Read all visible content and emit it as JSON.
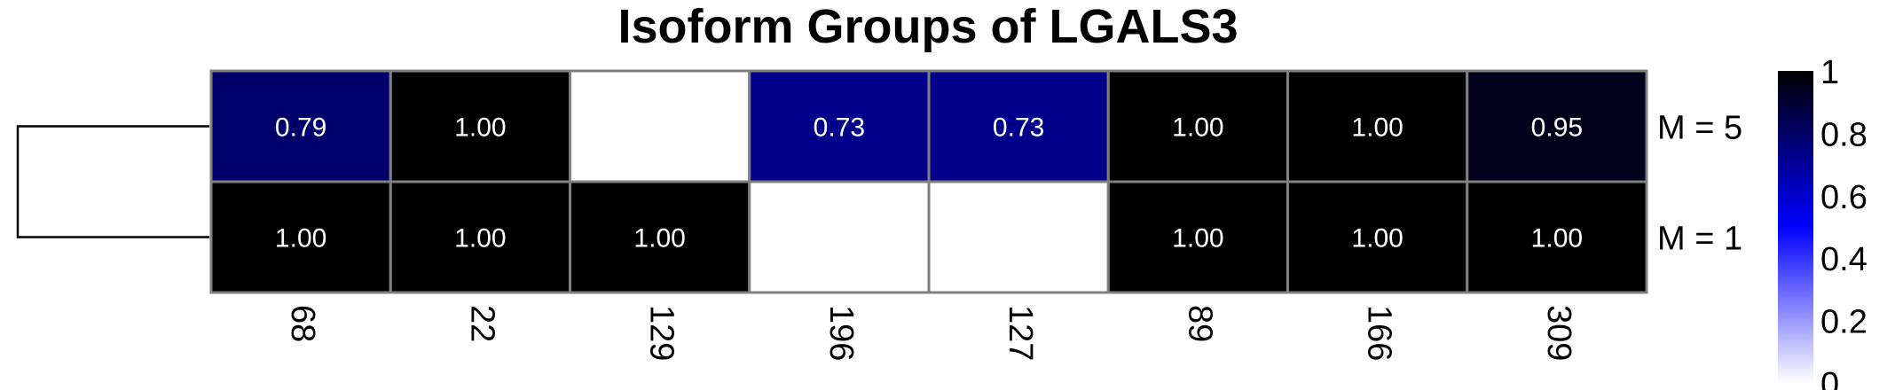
{
  "chart_data": {
    "type": "heatmap",
    "title": "Isoform Groups of LGALS3",
    "columns": [
      "68",
      "22",
      "129",
      "196",
      "127",
      "89",
      "166",
      "309"
    ],
    "rows": [
      "M = 5",
      "M = 1"
    ],
    "values": [
      [
        0.79,
        1.0,
        null,
        0.73,
        0.73,
        1.0,
        1.0,
        0.95
      ],
      [
        1.0,
        1.0,
        1.0,
        null,
        null,
        1.0,
        1.0,
        1.0
      ]
    ],
    "cell_labels": [
      [
        "0.79",
        "1.00",
        "",
        "0.73",
        "0.73",
        "1.00",
        "1.00",
        "0.95"
      ],
      [
        "1.00",
        "1.00",
        "1.00",
        "",
        "",
        "1.00",
        "1.00",
        "1.00"
      ]
    ],
    "color_scale": {
      "min": 0,
      "max": 1,
      "stops": [
        "#ffffff",
        "#0000ff",
        "#000000"
      ],
      "ticks": [
        "0",
        "0.2",
        "0.4",
        "0.6",
        "0.8",
        "1"
      ]
    },
    "dendrogram": "rows",
    "grid_color": "#808080"
  }
}
